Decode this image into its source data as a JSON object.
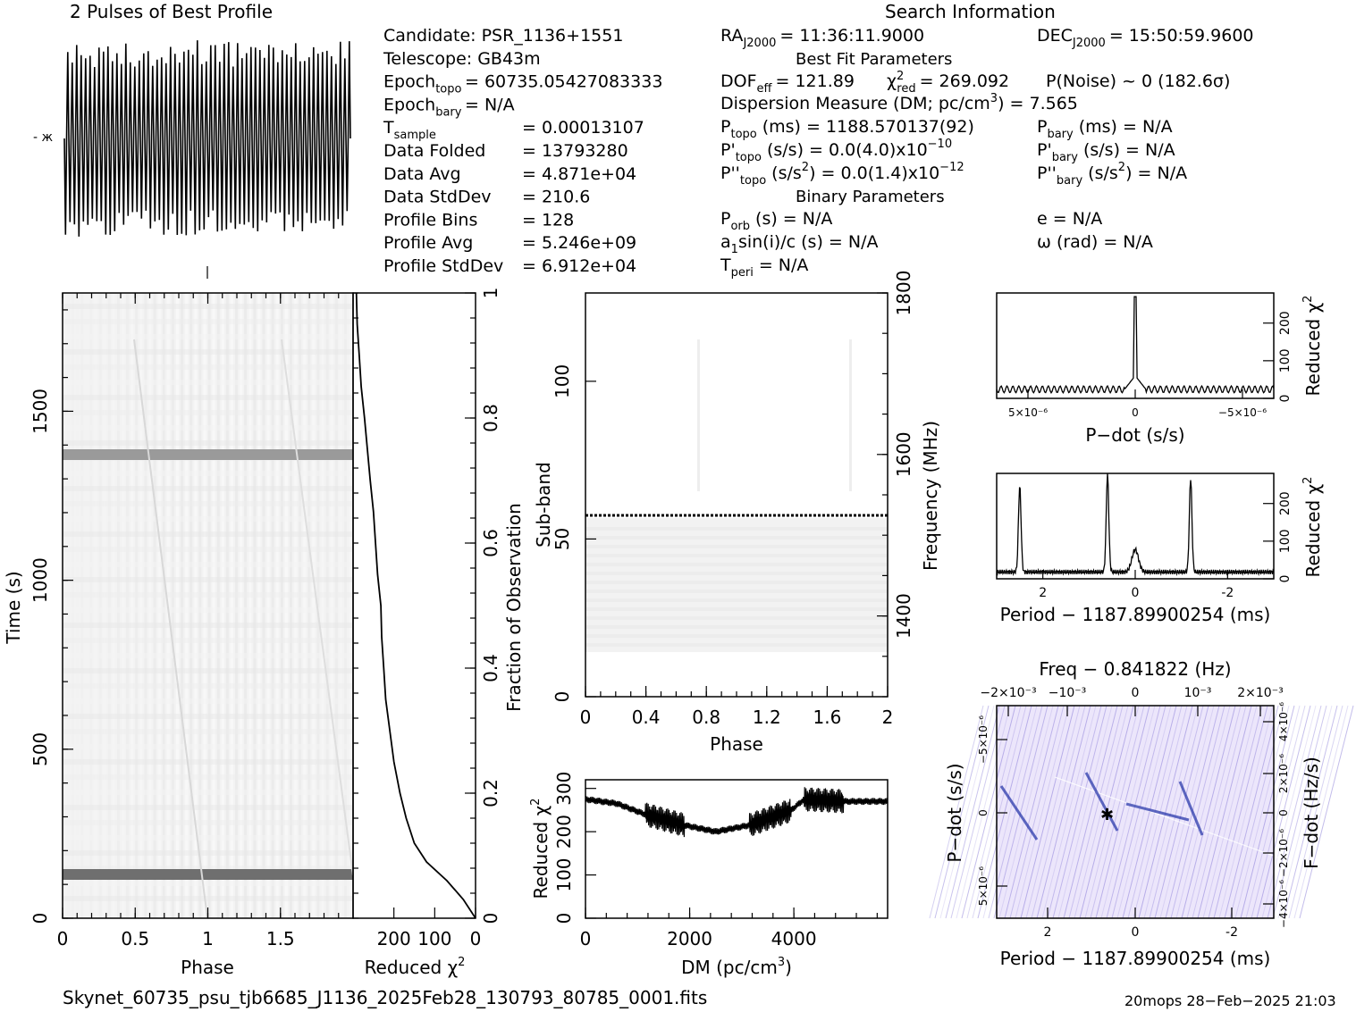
{
  "header": {
    "profile_title": "2 Pulses of Best Profile",
    "search_title": "Search Information",
    "best_fit_title": "Best Fit Parameters",
    "binary_title": "Binary Parameters"
  },
  "info_left": [
    {
      "label": "Candidate:  PSR_1136+1551",
      "value": ""
    },
    {
      "label": "Telescope:  GB43m",
      "value": ""
    },
    {
      "label": "Epoch",
      "sub": "topo",
      "value": "= 60735.05427083333"
    },
    {
      "label": "Epoch",
      "sub": "bary",
      "value": "= N/A"
    },
    {
      "label": "T",
      "sub": "sample",
      "value": "=   0.00013107"
    },
    {
      "label": "Data Folded",
      "value": "=   13793280"
    },
    {
      "label": "Data Avg",
      "value": "=   4.871e+04"
    },
    {
      "label": "Data StdDev",
      "value": "=   210.6"
    },
    {
      "label": "Profile Bins",
      "value": "=   128"
    },
    {
      "label": "Profile Avg",
      "value": "=   5.246e+09"
    },
    {
      "label": "Profile StdDev",
      "value": "=   6.912e+04"
    }
  ],
  "info_mid": {
    "ra": {
      "label": "RA",
      "sub": "J2000",
      "value": "= 11:36:11.9000"
    },
    "dec": {
      "label": "DEC",
      "sub": "J2000",
      "value": "= 15:50:59.9600"
    },
    "dof": {
      "label": "DOF",
      "sub": "eff",
      "value": "= 121.89"
    },
    "chi2": {
      "label": "χ",
      "sup": "2",
      "sub": "red",
      "value": "= 269.092"
    },
    "pnoise": "P(Noise) ~ 0   (182.6σ)",
    "dm": "Dispersion Measure (DM; pc/cm",
    "dm_sup": "3",
    "dm_value": ") = 7.565",
    "ptopo": {
      "label": "P",
      "sub": "topo",
      "value": "(ms) =  1188.570137(92)"
    },
    "pbary": {
      "label": "P",
      "sub": "bary",
      "value": "(ms) = N/A"
    },
    "pdtopo": {
      "label": "P'",
      "sub": "topo",
      "value": "(s/s) = 0.0(4.0)x10",
      "sup": "−10"
    },
    "pdbary": {
      "label": "P'",
      "sub": "bary",
      "value": "(s/s) = N/A"
    },
    "pddtopo": {
      "label": "P''",
      "sub": "topo",
      "value": "(s/s",
      "sup2": "2",
      "value2": ") = 0.0(1.4)x10",
      "sup": "−12"
    },
    "pddbary": {
      "label": "P''",
      "sub": "bary",
      "value": "(s/s",
      "sup2": "2",
      "value2": ") = N/A"
    },
    "porb": {
      "label": "P",
      "sub": "orb",
      "value": "(s) = N/A"
    },
    "ecc": "e = N/A",
    "a1": {
      "label": "a",
      "sub": "1",
      "value": "sin(i)/c (s) = N/A"
    },
    "omega": "ω (rad) = N/A",
    "tperi": {
      "label": "T",
      "sub": "peri",
      "value": "= N/A"
    }
  },
  "footer": {
    "filename": "Skynet_60735_psu_tjb6685_J1136_2025Feb28_130793_80785_0001.fits",
    "stamp": "20mops 28−Feb−2025 21:03"
  },
  "chart_data": [
    {
      "type": "line",
      "name": "profile",
      "xlim": [
        0,
        2
      ],
      "pulses": 2,
      "note_visible": "oscillating profile over 2 phase cycles"
    },
    {
      "type": "heatmap",
      "name": "time-phase",
      "xlabel": "Phase",
      "ylabel": "Time (s)",
      "xlim": [
        0,
        2
      ],
      "ylim": [
        0,
        1850
      ],
      "x_ticks": [
        0,
        0.5,
        1,
        1.5
      ],
      "y_ticks": [
        0,
        500,
        1000,
        1500
      ],
      "bright_rows_time": [
        130,
        1340
      ]
    },
    {
      "type": "line",
      "name": "reduced-chi2-vs-fraction",
      "xlabel": "Reduced χ",
      "xlabel_sup": "2",
      "ylabel": "Fraction of Observation",
      "x_ticks": [
        200,
        100,
        0
      ],
      "y_ticks": [
        0,
        0.2,
        0.4,
        0.6,
        0.8,
        1
      ],
      "xlim": [
        300,
        0
      ],
      "ylim": [
        0,
        1
      ],
      "curve": [
        [
          0,
          0.0
        ],
        [
          30,
          0.03
        ],
        [
          70,
          0.06
        ],
        [
          120,
          0.09
        ],
        [
          150,
          0.12
        ],
        [
          170,
          0.16
        ],
        [
          185,
          0.2
        ],
        [
          200,
          0.25
        ],
        [
          210,
          0.3
        ],
        [
          220,
          0.35
        ],
        [
          225,
          0.4
        ],
        [
          230,
          0.45
        ],
        [
          232,
          0.5
        ],
        [
          240,
          0.55
        ],
        [
          245,
          0.6
        ],
        [
          250,
          0.65
        ],
        [
          258,
          0.7
        ],
        [
          265,
          0.75
        ],
        [
          272,
          0.8
        ],
        [
          280,
          0.85
        ],
        [
          285,
          0.9
        ],
        [
          290,
          0.95
        ],
        [
          292,
          1.0
        ]
      ]
    },
    {
      "type": "heatmap",
      "name": "subband-phase",
      "xlabel": "Phase",
      "ylabel": "Sub-band",
      "y2label": "Frequency (MHz)",
      "x_ticks": [
        0,
        0.4,
        0.8,
        1.2,
        1.6,
        2
      ],
      "y_ticks": [
        0,
        50,
        100
      ],
      "y2_ticks": [
        1400,
        1600,
        1800
      ],
      "xlim": [
        0,
        2
      ],
      "ylim": [
        0,
        128
      ],
      "y2lim": [
        1300,
        1800
      ],
      "dashed_line_subband": 58
    },
    {
      "type": "line",
      "name": "chi2-vs-dm",
      "xlabel": "DM (pc/cm",
      "xlabel_sup": "3",
      "xlabel_end": ")",
      "ylabel": "Reduced χ",
      "ylabel_sup": "2",
      "x_ticks": [
        0,
        2000,
        4000
      ],
      "y_ticks": [
        0,
        100,
        200,
        300
      ],
      "xlim": [
        0,
        5800
      ],
      "ylim": [
        0,
        320
      ],
      "levels": [
        [
          0,
          275
        ],
        [
          600,
          265
        ],
        [
          1150,
          240
        ],
        [
          1900,
          215
        ],
        [
          2500,
          200
        ],
        [
          3150,
          215
        ],
        [
          3950,
          250
        ],
        [
          4200,
          275
        ],
        [
          5000,
          270
        ],
        [
          5800,
          270
        ]
      ]
    },
    {
      "type": "line",
      "name": "chi2-vs-pdot",
      "xlabel": "P−dot (s/s)",
      "ylabel": "Reduced χ",
      "ylabel_sup": "2",
      "x_ticks": [
        "5×10⁻⁶",
        "0",
        "−5×10⁻⁶"
      ],
      "y_ticks": [
        0,
        100,
        200
      ],
      "ylim": [
        0,
        280
      ],
      "peak": 270
    },
    {
      "type": "line",
      "name": "chi2-vs-period",
      "xlabel": "Period − 1187.89900254 (ms)",
      "ylabel": "Reduced χ",
      "ylabel_sup": "2",
      "x_ticks": [
        2,
        0,
        -2
      ],
      "y_ticks": [
        0,
        100,
        200
      ],
      "xlim": [
        3,
        -3
      ],
      "ylim": [
        0,
        280
      ],
      "peaks": [
        [
          2.5,
          230
        ],
        [
          0.6,
          260
        ],
        [
          -1.2,
          250
        ],
        [
          0,
          60
        ]
      ]
    },
    {
      "type": "heatmap",
      "name": "pdot-period",
      "xlabel": "Period − 1187.89900254 (ms)",
      "ylabel": "P−dot (s/s)",
      "x2label": "Freq − 0.841822 (Hz)",
      "y2label": "F−dot (Hz/s)",
      "x_ticks": [
        2,
        0,
        -2
      ],
      "x2_ticks": [
        "−2×10⁻³",
        "−10⁻³",
        "0",
        "10⁻³",
        "2×10⁻³"
      ],
      "y_ticks": [
        "−5×10⁻⁶",
        "0",
        "5×10⁻⁶"
      ],
      "y2_ticks": [
        "4×10⁻⁶",
        "2×10⁻⁶",
        "0",
        "−2×10⁻⁶",
        "−4×10⁻⁶"
      ],
      "best_marker": [
        0.55,
        0
      ]
    }
  ]
}
